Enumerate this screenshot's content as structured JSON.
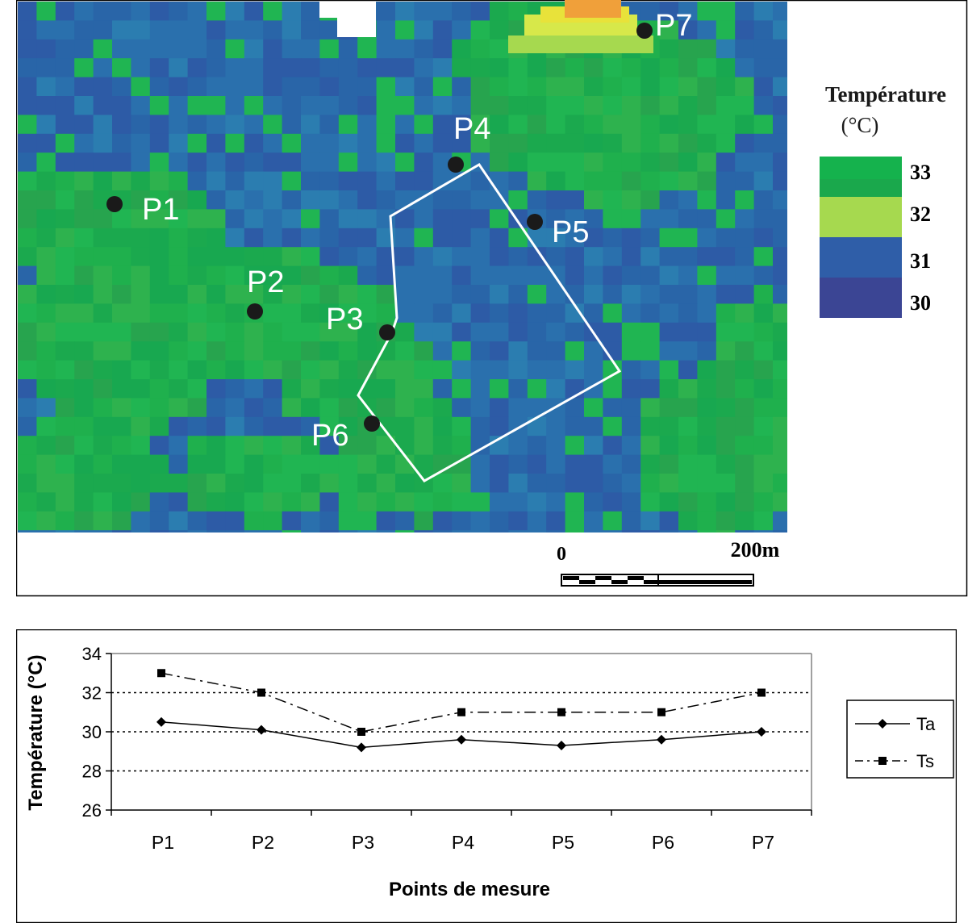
{
  "map": {
    "legend_title": "Température",
    "legend_unit": "(°C)",
    "legend_classes": [
      {
        "label": "33",
        "color": "#15b24d"
      },
      {
        "label": "32",
        "color": "#a6d94f"
      },
      {
        "label": "31",
        "color": "#2f5ea8"
      },
      {
        "label": "30",
        "color": "#3b4594"
      }
    ],
    "scale_start": "0",
    "scale_end": "200m",
    "points": [
      {
        "label": "P1"
      },
      {
        "label": "P2"
      },
      {
        "label": "P3"
      },
      {
        "label": "P4"
      },
      {
        "label": "P5"
      },
      {
        "label": "P6"
      },
      {
        "label": "P7"
      }
    ]
  },
  "chart_data": {
    "type": "line",
    "categories": [
      "P1",
      "P2",
      "P3",
      "P4",
      "P5",
      "P6",
      "P7"
    ],
    "series": [
      {
        "name": "Ta",
        "values": [
          30.5,
          30.1,
          29.2,
          29.6,
          29.3,
          29.6,
          30.0
        ],
        "style": "solid",
        "marker": "diamond"
      },
      {
        "name": "Ts",
        "values": [
          33.0,
          32.0,
          30.0,
          31.0,
          31.0,
          31.0,
          32.0
        ],
        "style": "dash-dot",
        "marker": "square"
      }
    ],
    "xlabel": "Points de mesure",
    "ylabel": "Température (°C)",
    "ylim": [
      26,
      34
    ],
    "yticks": [
      "26",
      "28",
      "30",
      "32",
      "34"
    ],
    "grid": "dotted at 28, 30, 32",
    "legend_position": "right"
  }
}
